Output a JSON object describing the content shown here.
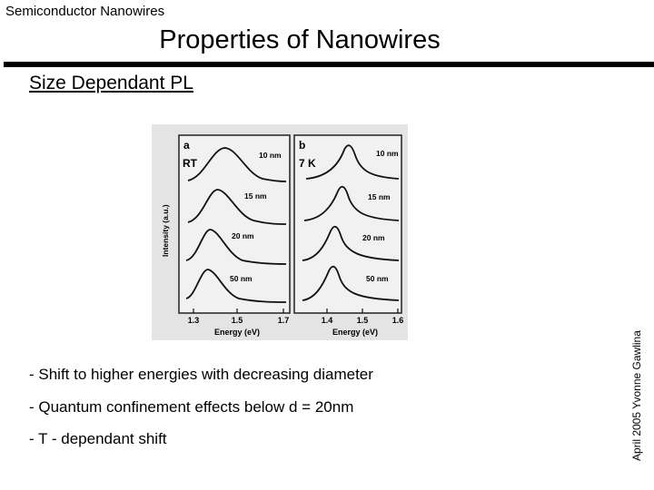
{
  "header": {
    "label": "Semiconductor Nanowires"
  },
  "slide": {
    "title": "Properties of Nanowires",
    "section": "Size Dependant PL"
  },
  "credit": "April 2005 Yvonne Gawlina",
  "figure": {
    "panels": [
      {
        "letter": "a",
        "condition": "RT",
        "labels": [
          "10 nm",
          "15 nm",
          "20 nm",
          "50 nm"
        ]
      },
      {
        "letter": "b",
        "condition": "7 K",
        "labels": [
          "10 nm",
          "15 nm",
          "20 nm",
          "50 nm"
        ]
      }
    ],
    "ylabel": "Intensity (a.u.)",
    "xlabel_a": "Energy (eV)",
    "xlabel_b": "Energy (eV)",
    "ticks_a": [
      "1.3",
      "1.5",
      "1.7"
    ],
    "ticks_b": [
      "1.4",
      "1.5",
      "1.6"
    ]
  },
  "bullets": [
    "- Shift to higher energies with decreasing diameter",
    "- Quantum confinement effects below d = 20nm",
    "- T - dependant shift"
  ]
}
